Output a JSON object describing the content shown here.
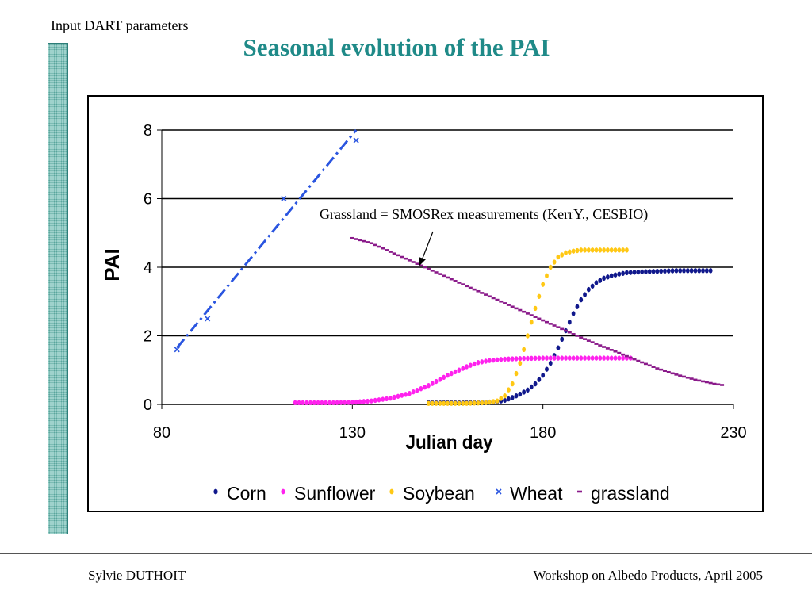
{
  "header": {
    "label": "Input DART parameters"
  },
  "slide": {
    "title": "Seasonal evolution of the PAI"
  },
  "footer": {
    "author": "Sylvie DUTHOIT",
    "event": "Workshop on Albedo Products, April 2005"
  },
  "colors": {
    "title": "#1f8a88",
    "corn": "#10188c",
    "sunflower": "#ff22ee",
    "soybean": "#ffc814",
    "wheat": "#2a55e0",
    "grassland": "#8a1a8a"
  },
  "chart_data": {
    "type": "scatter",
    "xlabel": "Julian day",
    "ylabel": "PAI",
    "xlim": [
      80,
      230
    ],
    "ylim": [
      0,
      8
    ],
    "x_ticks": [
      "80",
      "130",
      "180",
      "230"
    ],
    "y_ticks": [
      "0",
      "2",
      "4",
      "6",
      "8"
    ],
    "grid": "horizontal",
    "legend_position": "bottom",
    "annotation": "Grassland = SMOSRex measurements (KerrY., CESBIO)",
    "series": [
      {
        "name": "Corn",
        "marker": "dot",
        "x": [
          150,
          155,
          160,
          165,
          168,
          170,
          172,
          174,
          176,
          178,
          180,
          182,
          184,
          186,
          188,
          190,
          192,
          194,
          196,
          198,
          200,
          202,
          205,
          210,
          215,
          220,
          224
        ],
        "y": [
          0.05,
          0.05,
          0.05,
          0.06,
          0.08,
          0.12,
          0.2,
          0.3,
          0.42,
          0.6,
          0.85,
          1.2,
          1.65,
          2.15,
          2.65,
          3.05,
          3.35,
          3.55,
          3.68,
          3.75,
          3.8,
          3.84,
          3.86,
          3.88,
          3.9,
          3.9,
          3.9
        ]
      },
      {
        "name": "Sunflower",
        "marker": "dot",
        "x": [
          115,
          120,
          125,
          130,
          135,
          140,
          145,
          150,
          155,
          160,
          163,
          166,
          170,
          175,
          180,
          185,
          190,
          195,
          200,
          203
        ],
        "y": [
          0.05,
          0.05,
          0.05,
          0.06,
          0.1,
          0.18,
          0.32,
          0.55,
          0.85,
          1.1,
          1.22,
          1.28,
          1.32,
          1.34,
          1.35,
          1.35,
          1.35,
          1.35,
          1.35,
          1.35
        ]
      },
      {
        "name": "Soybean",
        "marker": "dot",
        "x": [
          150,
          155,
          160,
          165,
          168,
          170,
          172,
          174,
          176,
          178,
          180,
          182,
          184,
          186,
          188,
          190,
          195,
          200,
          202
        ],
        "y": [
          0.03,
          0.03,
          0.03,
          0.05,
          0.1,
          0.25,
          0.6,
          1.2,
          2.0,
          2.8,
          3.5,
          4.0,
          4.3,
          4.42,
          4.47,
          4.5,
          4.5,
          4.5,
          4.5
        ]
      },
      {
        "name": "Wheat",
        "marker": "x",
        "x": [
          84,
          92,
          112,
          131
        ],
        "y": [
          1.6,
          2.5,
          6.0,
          7.7
        ]
      },
      {
        "name": "grassland",
        "marker": "dash",
        "x": [
          130,
          135,
          140,
          145,
          150,
          155,
          160,
          165,
          170,
          175,
          180,
          185,
          190,
          195,
          200,
          205,
          210,
          215,
          220,
          225,
          228
        ],
        "y": [
          4.85,
          4.7,
          4.45,
          4.2,
          3.95,
          3.7,
          3.45,
          3.2,
          2.95,
          2.7,
          2.45,
          2.2,
          1.95,
          1.72,
          1.5,
          1.27,
          1.05,
          0.87,
          0.72,
          0.6,
          0.55
        ]
      }
    ],
    "wheat_trend": {
      "x": [
        84,
        131
      ],
      "y": [
        1.65,
        8.0
      ]
    }
  }
}
